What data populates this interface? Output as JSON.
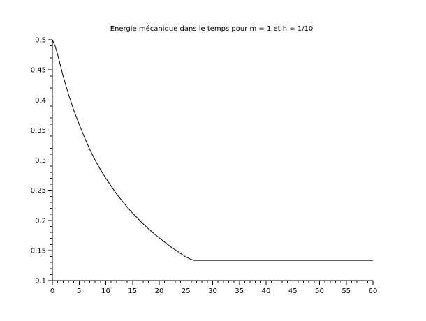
{
  "chart_data": {
    "type": "line",
    "title": "Energie mécanique dans le temps pour m = 1 et h = 1/10",
    "xlabel": "",
    "ylabel": "",
    "xlim": [
      0,
      60
    ],
    "ylim": [
      0.1,
      0.5
    ],
    "x_ticks": [
      0,
      5,
      10,
      15,
      20,
      25,
      30,
      35,
      40,
      45,
      50,
      55,
      60
    ],
    "x_tick_labels": [
      "0",
      "5",
      "10",
      "15",
      "20",
      "25",
      "30",
      "35",
      "40",
      "45",
      "50",
      "55",
      "60"
    ],
    "y_ticks": [
      0.1,
      0.15,
      0.2,
      0.25,
      0.3,
      0.35,
      0.4,
      0.45,
      0.5
    ],
    "y_tick_labels": [
      "0.1",
      "0.15",
      "0.2",
      "0.25",
      "0.3",
      "0.35",
      "0.4",
      "0.45",
      "0.5"
    ],
    "grid": false,
    "legend": "none",
    "line_color": "#000000",
    "series": [
      {
        "x": [
          0,
          0.5,
          1,
          2,
          3,
          4,
          5,
          6,
          7,
          8,
          9,
          10,
          11,
          12,
          13,
          14,
          15,
          16,
          17,
          18,
          19,
          20,
          21,
          22,
          23,
          24,
          25,
          26,
          26.5,
          27,
          30,
          35,
          40,
          45,
          50,
          55,
          60
        ],
        "y": [
          0.5,
          0.49,
          0.475,
          0.44,
          0.41,
          0.383,
          0.36,
          0.338,
          0.318,
          0.3,
          0.284,
          0.27,
          0.257,
          0.244,
          0.233,
          0.222,
          0.212,
          0.203,
          0.194,
          0.186,
          0.178,
          0.171,
          0.164,
          0.157,
          0.151,
          0.145,
          0.139,
          0.135,
          0.1335,
          0.1335,
          0.1335,
          0.1335,
          0.1335,
          0.1335,
          0.1335,
          0.1335,
          0.1335
        ]
      }
    ]
  }
}
